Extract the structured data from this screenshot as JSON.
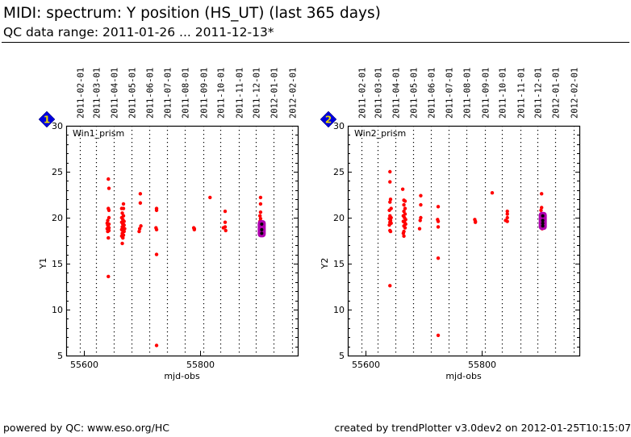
{
  "header": {
    "title": "MIDI: spectrum: Y position (HS_UT) (last 365 days)",
    "subtitle": "QC data range: 2011-01-26 ... 2011-12-13*"
  },
  "footer": {
    "left": "powered by QC: www.eso.org/HC",
    "right": "created by trendPlotter v3.0dev2 on 2012-01-25T10:15:07"
  },
  "colors": {
    "point": "#ff0000",
    "highlight_fill": "#b000b0",
    "highlight_core": "#000000",
    "badge": "#0000dd",
    "badge_text": "#e8d800"
  },
  "chart_data": [
    {
      "type": "scatter",
      "badge": "1",
      "panel_label": "Win1_prism",
      "xlabel": "mjd-obs",
      "ylabel": "Y1",
      "xlim": [
        55569.4,
        55968
      ],
      "ylim": [
        5,
        30
      ],
      "xticks": [
        55600,
        55800
      ],
      "yticks": [
        5,
        10,
        15,
        20,
        25,
        30
      ],
      "grid": "vertical dotted at month starts",
      "month_lines": [
        {
          "label": "2011-02-01",
          "mjd": 55593
        },
        {
          "label": "2011-03-01",
          "mjd": 55621
        },
        {
          "label": "2011-04-01",
          "mjd": 55652
        },
        {
          "label": "2011-05-01",
          "mjd": 55682
        },
        {
          "label": "2011-06-01",
          "mjd": 55713
        },
        {
          "label": "2011-07-01",
          "mjd": 55743
        },
        {
          "label": "2011-08-01",
          "mjd": 55774
        },
        {
          "label": "2011-09-01",
          "mjd": 55805
        },
        {
          "label": "2011-10-01",
          "mjd": 55835
        },
        {
          "label": "2011-11-01",
          "mjd": 55866
        },
        {
          "label": "2011-12-01",
          "mjd": 55896
        },
        {
          "label": "2012-01-01",
          "mjd": 55927
        },
        {
          "label": "2012-02-01",
          "mjd": 55958
        }
      ],
      "points": [
        [
          55642,
          24.2
        ],
        [
          55643,
          23.2
        ],
        [
          55642,
          21.0
        ],
        [
          55643,
          20.8
        ],
        [
          55643,
          20.0
        ],
        [
          55641,
          19.7
        ],
        [
          55640,
          19.4
        ],
        [
          55643,
          19.3
        ],
        [
          55641,
          19.2
        ],
        [
          55642,
          19.0
        ],
        [
          55643,
          18.9
        ],
        [
          55640,
          18.8
        ],
        [
          55642,
          18.7
        ],
        [
          55641,
          18.5
        ],
        [
          55643,
          18.6
        ],
        [
          55642,
          17.8
        ],
        [
          55642,
          13.6
        ],
        [
          55668,
          21.5
        ],
        [
          55665,
          21.0
        ],
        [
          55668,
          21.0
        ],
        [
          55666,
          20.5
        ],
        [
          55668,
          20.2
        ],
        [
          55665,
          20.0
        ],
        [
          55667,
          19.8
        ],
        [
          55669,
          19.6
        ],
        [
          55665,
          19.5
        ],
        [
          55667,
          19.3
        ],
        [
          55669,
          19.2
        ],
        [
          55666,
          19.0
        ],
        [
          55668,
          18.9
        ],
        [
          55670,
          18.8
        ],
        [
          55665,
          18.7
        ],
        [
          55667,
          18.6
        ],
        [
          55669,
          18.5
        ],
        [
          55666,
          18.3
        ],
        [
          55668,
          18.1
        ],
        [
          55665,
          18.0
        ],
        [
          55667,
          17.8
        ],
        [
          55666,
          17.2
        ],
        [
          55697,
          22.6
        ],
        [
          55697,
          21.6
        ],
        [
          55698,
          19.1
        ],
        [
          55696,
          18.8
        ],
        [
          55695,
          18.5
        ],
        [
          55725,
          21.0
        ],
        [
          55725,
          20.8
        ],
        [
          55724,
          18.9
        ],
        [
          55725,
          18.7
        ],
        [
          55725,
          16.0
        ],
        [
          55725,
          6.1
        ],
        [
          55789,
          18.9
        ],
        [
          55790,
          18.8
        ],
        [
          55790,
          18.7
        ],
        [
          55817,
          22.2
        ],
        [
          55843,
          20.7
        ],
        [
          55843,
          19.5
        ],
        [
          55840,
          18.9
        ],
        [
          55843,
          19.0
        ],
        [
          55844,
          18.6
        ],
        [
          55904,
          22.2
        ],
        [
          55904,
          21.5
        ],
        [
          55904,
          20.6
        ],
        [
          55903,
          20.2
        ],
        [
          55904,
          19.9
        ],
        [
          55903,
          19.6
        ],
        [
          55904,
          19.2
        ],
        [
          55905,
          18.7
        ],
        [
          55905,
          18.3
        ]
      ],
      "highlighted": [
        [
          55906,
          19.3
        ],
        [
          55906,
          18.7
        ],
        [
          55906,
          18.3
        ]
      ]
    },
    {
      "type": "scatter",
      "badge": "2",
      "panel_label": "Win2_prism",
      "xlabel": "mjd-obs",
      "ylabel": "Y2",
      "xlim": [
        55569.4,
        55968
      ],
      "ylim": [
        5,
        30
      ],
      "xticks": [
        55600,
        55800
      ],
      "yticks": [
        5,
        10,
        15,
        20,
        25,
        30
      ],
      "grid": "vertical dotted at month starts",
      "month_lines": [
        {
          "label": "2011-02-01",
          "mjd": 55593
        },
        {
          "label": "2011-03-01",
          "mjd": 55621
        },
        {
          "label": "2011-04-01",
          "mjd": 55652
        },
        {
          "label": "2011-05-01",
          "mjd": 55682
        },
        {
          "label": "2011-06-01",
          "mjd": 55713
        },
        {
          "label": "2011-07-01",
          "mjd": 55743
        },
        {
          "label": "2011-08-01",
          "mjd": 55774
        },
        {
          "label": "2011-09-01",
          "mjd": 55805
        },
        {
          "label": "2011-10-01",
          "mjd": 55835
        },
        {
          "label": "2011-11-01",
          "mjd": 55866
        },
        {
          "label": "2011-12-01",
          "mjd": 55896
        },
        {
          "label": "2012-01-01",
          "mjd": 55927
        },
        {
          "label": "2012-02-01",
          "mjd": 55958
        }
      ],
      "points": [
        [
          55642,
          25.0
        ],
        [
          55642,
          23.9
        ],
        [
          55643,
          22.0
        ],
        [
          55642,
          21.7
        ],
        [
          55644,
          21.0
        ],
        [
          55641,
          20.8
        ],
        [
          55642,
          20.2
        ],
        [
          55644,
          20.0
        ],
        [
          55641,
          19.9
        ],
        [
          55643,
          19.7
        ],
        [
          55642,
          19.5
        ],
        [
          55644,
          19.4
        ],
        [
          55641,
          19.2
        ],
        [
          55642,
          18.6
        ],
        [
          55643,
          18.5
        ],
        [
          55642,
          12.6
        ],
        [
          55664,
          23.1
        ],
        [
          55666,
          21.9
        ],
        [
          55668,
          21.8
        ],
        [
          55666,
          21.4
        ],
        [
          55668,
          21.0
        ],
        [
          55666,
          20.7
        ],
        [
          55668,
          20.4
        ],
        [
          55665,
          20.2
        ],
        [
          55667,
          20.0
        ],
        [
          55669,
          19.8
        ],
        [
          55665,
          19.6
        ],
        [
          55667,
          19.5
        ],
        [
          55669,
          19.3
        ],
        [
          55666,
          19.1
        ],
        [
          55668,
          18.9
        ],
        [
          55666,
          18.5
        ],
        [
          55665,
          18.3
        ],
        [
          55666,
          18.0
        ],
        [
          55695,
          22.4
        ],
        [
          55695,
          21.4
        ],
        [
          55695,
          20.0
        ],
        [
          55694,
          19.7
        ],
        [
          55693,
          18.8
        ],
        [
          55725,
          21.2
        ],
        [
          55724,
          19.8
        ],
        [
          55725,
          19.6
        ],
        [
          55725,
          19.0
        ],
        [
          55725,
          15.6
        ],
        [
          55725,
          7.2
        ],
        [
          55788,
          19.8
        ],
        [
          55789,
          19.6
        ],
        [
          55789,
          19.5
        ],
        [
          55818,
          22.7
        ],
        [
          55844,
          20.7
        ],
        [
          55844,
          20.4
        ],
        [
          55844,
          20.0
        ],
        [
          55841,
          19.7
        ],
        [
          55844,
          19.6
        ],
        [
          55903,
          22.6
        ],
        [
          55903,
          21.1
        ],
        [
          55902,
          20.8
        ],
        [
          55903,
          20.3
        ],
        [
          55904,
          19.7
        ],
        [
          55904,
          18.8
        ]
      ],
      "highlighted": [
        [
          55905,
          20.2
        ],
        [
          55905,
          19.7
        ],
        [
          55905,
          19.4
        ],
        [
          55905,
          19.1
        ]
      ]
    }
  ]
}
